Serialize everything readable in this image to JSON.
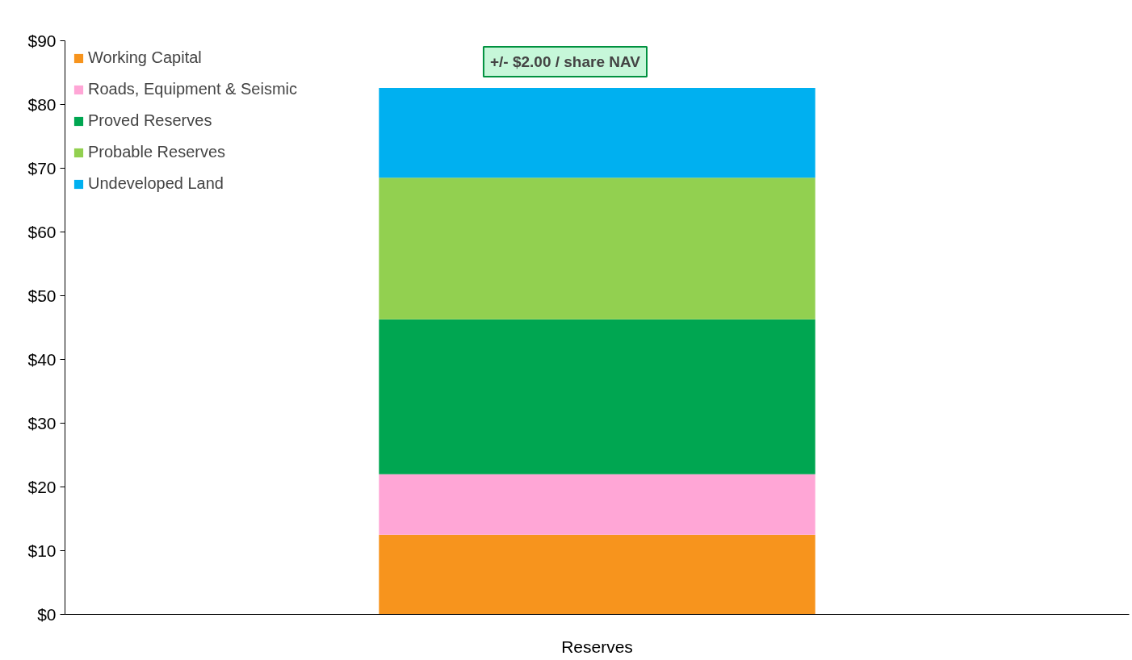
{
  "chart_data": {
    "type": "bar",
    "stacked": true,
    "categories": [
      "Reserves"
    ],
    "series": [
      {
        "name": "Working Capital",
        "color": "#f7941d",
        "values": [
          12.5
        ]
      },
      {
        "name": "Roads, Equipment & Seismic",
        "color": "#ffa6d6",
        "values": [
          9.5
        ]
      },
      {
        "name": "Proved Reserves",
        "color": "#00a651",
        "values": [
          24.3
        ]
      },
      {
        "name": "Probable Reserves",
        "color": "#92d050",
        "values": [
          22.2
        ]
      },
      {
        "name": "Undeveloped Land",
        "color": "#00b0f0",
        "values": [
          14.1
        ]
      }
    ],
    "ylim": [
      0,
      90
    ],
    "yticks": [
      {
        "value": 0,
        "label": "$0"
      },
      {
        "value": 10,
        "label": "$10"
      },
      {
        "value": 20,
        "label": "$20"
      },
      {
        "value": 30,
        "label": "$30"
      },
      {
        "value": 40,
        "label": "$40"
      },
      {
        "value": 50,
        "label": "$50"
      },
      {
        "value": 60,
        "label": "$60"
      },
      {
        "value": 70,
        "label": "$70"
      },
      {
        "value": 80,
        "label": "$80"
      },
      {
        "value": 90,
        "label": "$90"
      }
    ],
    "annotations": [
      {
        "text": "+/- $2.00 / share NAV",
        "x": "Reserves",
        "y": 82.6
      }
    ],
    "legend": "top left",
    "grid": false
  }
}
